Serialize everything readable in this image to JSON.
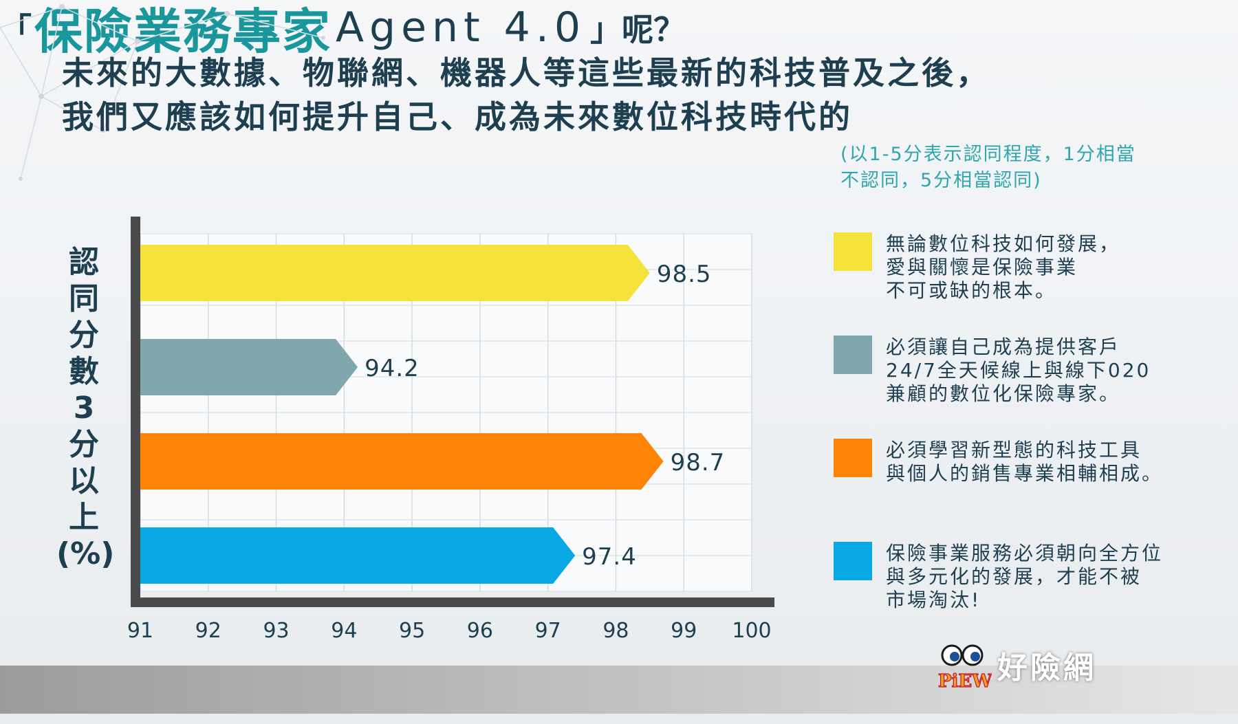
{
  "title": {
    "line1": "未來的大數據、物聯網、機器人等這些最新的科技普及之後，",
    "line2": "我們又應該如何提升自己、成為未來數位科技時代的",
    "open_bracket": "「",
    "highlight": "保險業務專家",
    "agent": "Agent 4.0",
    "close_bracket": "」呢？"
  },
  "note": {
    "line1": "(以1-5分表示認同程度，1分相當",
    "line2": "不認同，5分相當認同)"
  },
  "ylabel_chars": [
    "認",
    "同",
    "分",
    "數",
    "3",
    "分",
    "以",
    "上",
    "(%)"
  ],
  "legend": [
    {
      "lines": [
        "無論數位科技如何發展，",
        "愛與關懷是保險事業",
        "不可或缺的根本。"
      ],
      "color": "#f5e33b"
    },
    {
      "lines": [
        "必須讓自己成為提供客戶",
        "24/7全天候線上與線下020",
        "兼顧的數位化保險專家。"
      ],
      "color": "#7fa7ad"
    },
    {
      "lines": [
        "必須學習新型態的科技工具",
        "與個人的銷售專業相輔相成。"
      ],
      "color": "#ff8304"
    },
    {
      "lines": [
        "保險事業服務必須朝向全方位",
        "與多元化的發展，才能不被",
        "市場淘汰!"
      ],
      "color": "#08a9e2"
    }
  ],
  "brand": {
    "logo_text": "PiEW!",
    "name": "好險網"
  },
  "chart_data": {
    "type": "bar",
    "orientation": "horizontal",
    "values": [
      98.5,
      94.2,
      98.7,
      97.4
    ],
    "value_labels": [
      "98.5",
      "94.2",
      "98.7",
      "97.4"
    ],
    "colors": [
      "#f5e33b",
      "#7fa7ad",
      "#ff8304",
      "#08a9e2"
    ],
    "xlim": [
      91,
      100
    ],
    "xticks": [
      "91",
      "92",
      "93",
      "94",
      "95",
      "96",
      "97",
      "98",
      "99",
      "100"
    ],
    "ylabel": "認同分數3分以上(%)",
    "grid": true,
    "legend_position": "right"
  }
}
